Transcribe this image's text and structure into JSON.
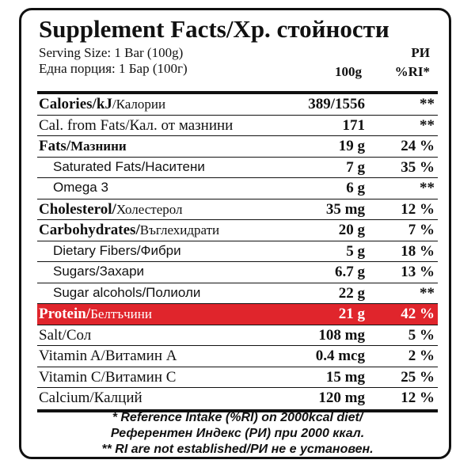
{
  "title": "Supplement Facts/Хр. стойности",
  "serving": [
    "Serving Size: 1 Bar (100g)",
    "Една порция: 1 Бар (100г)"
  ],
  "header": {
    "amount": "100g",
    "ri_local": "РИ",
    "ri": "%RI*"
  },
  "rows": [
    {
      "name": [
        "Calories/kJ",
        "/Калории"
      ],
      "amount": "389/1556",
      "ri": "**"
    },
    {
      "name": [
        "Cal. from Fats/Кал. от мазнини"
      ],
      "amount": "171",
      "ri": "**"
    },
    {
      "name": [
        "Fats/",
        "Мазнини"
      ],
      "amount": "19 g",
      "ri": "24 %"
    },
    {
      "name": [
        "Saturated Fats/Наситени"
      ],
      "amount": "7 g",
      "ri": "35 %"
    },
    {
      "name": [
        "Omega 3"
      ],
      "amount": "6 g",
      "ri": "**"
    },
    {
      "name": [
        "Cholesterol/",
        "Холестерол"
      ],
      "amount": "35 mg",
      "ri": "12 %"
    },
    {
      "name": [
        "Carbohydrates/",
        "Въглехидрати"
      ],
      "amount": "20 g",
      "ri": "7 %"
    },
    {
      "name": [
        "Dietary Fibers/Фибри"
      ],
      "amount": "5 g",
      "ri": "18 %"
    },
    {
      "name": [
        "Sugars/Захари"
      ],
      "amount": "6.7 g",
      "ri": "13 %"
    },
    {
      "name": [
        "Sugar alcohols/Полиоли"
      ],
      "amount": "22 g",
      "ri": "**"
    },
    {
      "name": [
        "Protein/",
        "Белтъчини"
      ],
      "amount": "21 g",
      "ri": "42 %"
    },
    {
      "name": [
        "Salt/Сол"
      ],
      "amount": "108 mg",
      "ri": "5 %"
    },
    {
      "name": [
        "Vitamin A/Витамин А"
      ],
      "amount": "0.4 mcg",
      "ri": "2 %"
    },
    {
      "name": [
        "Vitamin C/Витамин С"
      ],
      "amount": "15 mg",
      "ri": "25 %"
    },
    {
      "name": [
        "Calcium/Калций"
      ],
      "amount": "120 mg",
      "ri": "12 %"
    }
  ],
  "footnotes": [
    "* Reference Intake (%RI) on 2000kcal diet/",
    "Референтен Индекс (РИ) при 2000 ккал.",
    "** RI are not established/РИ не е установен."
  ]
}
